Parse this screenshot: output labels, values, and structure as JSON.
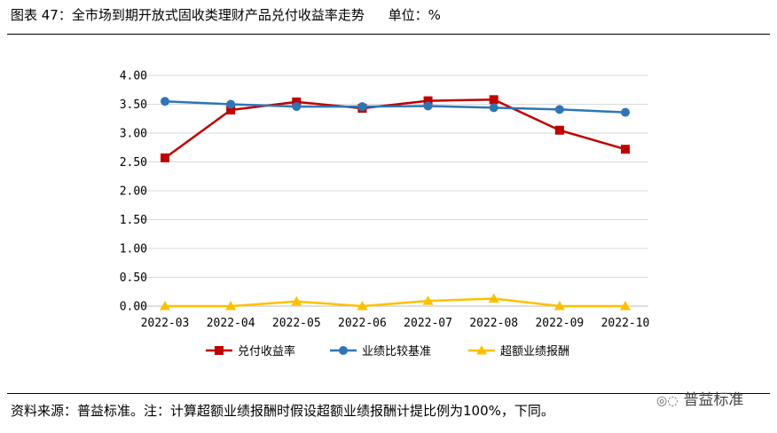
{
  "header": {
    "title": "图表 47：全市场到期开放式固收类理财产品兑付收益率走势",
    "unit": "单位：%"
  },
  "footer": {
    "note": "资料来源：普益标准。注：计算超额业绩报酬时假设超额业绩报酬计提比例为100%，下同。"
  },
  "watermark": {
    "icon": "wechat-icon",
    "text": "普益标准"
  },
  "chart_data": {
    "type": "line",
    "categories": [
      "2022-03",
      "2022-04",
      "2022-05",
      "2022-06",
      "2022-07",
      "2022-08",
      "2022-09",
      "2022-10"
    ],
    "ylim": [
      0,
      4
    ],
    "ytick_labels": [
      "0.00",
      "0.50",
      "1.00",
      "1.50",
      "2.00",
      "2.50",
      "3.00",
      "3.50",
      "4.00"
    ],
    "grid": "horizontal",
    "legend_position": "bottom",
    "series": [
      {
        "name": "兑付收益率",
        "color": "#c00000",
        "marker": "square",
        "values": [
          2.57,
          3.4,
          3.54,
          3.43,
          3.56,
          3.58,
          3.05,
          2.72
        ]
      },
      {
        "name": "业绩比较基准",
        "color": "#2e75b6",
        "marker": "circle",
        "values": [
          3.55,
          3.5,
          3.46,
          3.46,
          3.47,
          3.44,
          3.41,
          3.36
        ]
      },
      {
        "name": "超额业绩报酬",
        "color": "#ffc000",
        "marker": "triangle",
        "values": [
          0.0,
          0.0,
          0.08,
          0.0,
          0.09,
          0.13,
          0.0,
          0.0
        ]
      }
    ]
  }
}
